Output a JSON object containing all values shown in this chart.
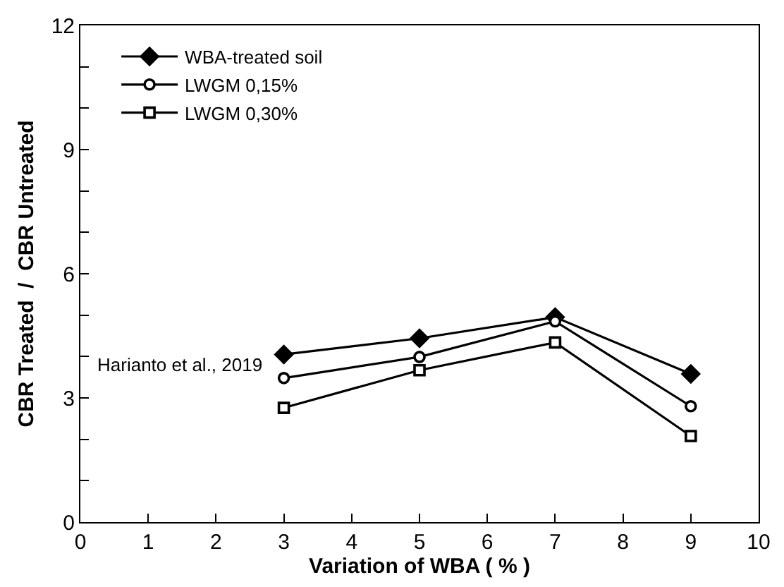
{
  "chart_data": {
    "type": "line",
    "xlabel": "Variation of WBA ( % )",
    "ylabel": "CBR Treated  /  CBR Untreated",
    "x": [
      3,
      5,
      7,
      9
    ],
    "series": [
      {
        "name": "WBA-treated soil",
        "color": "#000000",
        "marker": "diamond",
        "values": [
          4.05,
          4.44,
          4.95,
          3.58
        ]
      },
      {
        "name": "LWGM 0,15%",
        "color": "#000000",
        "marker": "circle",
        "values": [
          3.48,
          3.99,
          4.85,
          2.8
        ]
      },
      {
        "name": "LWGM 0,30%",
        "color": "#000000",
        "marker": "square",
        "values": [
          2.76,
          3.67,
          4.34,
          2.08
        ]
      }
    ],
    "xlim": [
      0,
      10
    ],
    "xticks": [
      0,
      1,
      2,
      3,
      4,
      5,
      6,
      7,
      8,
      9,
      10
    ],
    "ylim": [
      0,
      12
    ],
    "yticks": [
      0,
      {
        "value": 1,
        "label": null
      },
      {
        "value": 2,
        "label": null
      },
      3,
      {
        "value": 4,
        "label": null
      },
      {
        "value": 5,
        "label": null
      },
      6,
      {
        "value": 7,
        "label": null
      },
      {
        "value": 8,
        "label": null
      },
      9,
      {
        "value": 10,
        "label": null
      },
      {
        "value": 11,
        "label": null
      },
      12
    ],
    "annotations": [
      "Harianto et al., 2019"
    ],
    "legend": "top left",
    "line_style": "solid"
  }
}
